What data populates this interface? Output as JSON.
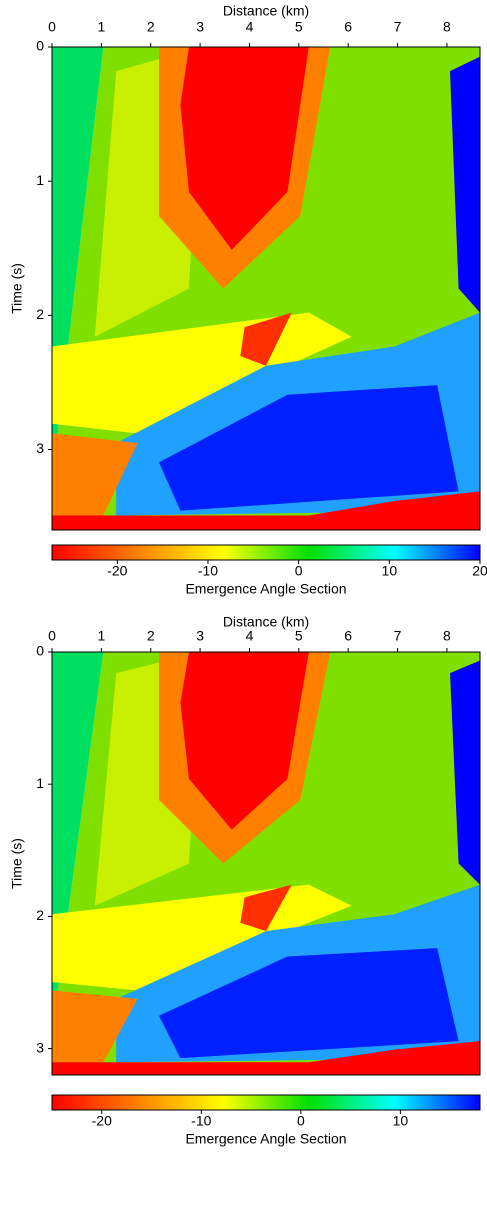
{
  "chart_data": [
    {
      "type": "heatmap",
      "xlabel": "Distance (km)",
      "ylabel": "Time (s)",
      "xlim": [
        0,
        8.67
      ],
      "xticks": [
        0,
        1,
        2,
        3,
        4,
        5,
        6,
        7,
        8
      ],
      "ylim": [
        0,
        3.6
      ],
      "yticks": [
        0,
        1,
        2,
        3
      ],
      "colormap": [
        "#ff0000",
        "#ff8000",
        "#ffff00",
        "#00e000",
        "#00ffff",
        "#0000ff"
      ],
      "colorbar": {
        "label": "Emergence Angle Section",
        "lim": [
          -27.2,
          20
        ],
        "ticks": [
          -20,
          -10,
          0,
          10,
          20
        ]
      }
    },
    {
      "type": "heatmap",
      "xlabel": "Distance (km)",
      "ylabel": "Time (s)",
      "xlim": [
        0,
        8.67
      ],
      "xticks": [
        0,
        1,
        2,
        3,
        4,
        5,
        6,
        7,
        8
      ],
      "ylim": [
        0,
        3.2
      ],
      "yticks": [
        0,
        1,
        2,
        3
      ],
      "colormap": [
        "#ff0000",
        "#ff8000",
        "#ffff00",
        "#00e000",
        "#00ffff",
        "#0000ff"
      ],
      "colorbar": {
        "label": "Emergence Angle Section",
        "lim": [
          -25,
          18
        ],
        "ticks": [
          -20,
          -10,
          0,
          10
        ]
      }
    }
  ]
}
